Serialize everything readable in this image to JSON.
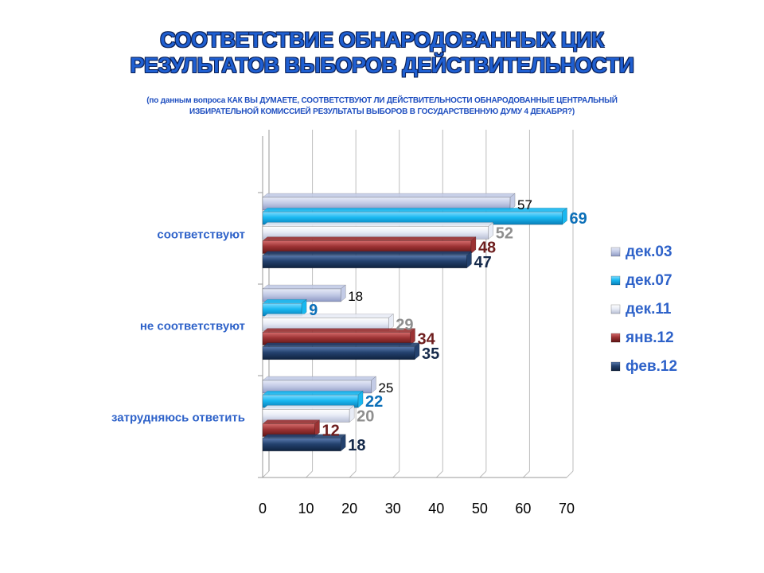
{
  "title": {
    "line1": "СООТВЕТСТВИЕ ОБНАРОДОВАННЫХ ЦИК",
    "line2": "РЕЗУЛЬТАТОВ ВЫБОРОВ ДЕЙСТВИТЕЛЬНОСТИ"
  },
  "subtitle": {
    "line1": "(по данным вопроса КАК ВЫ ДУМАЕТЕ, СООТВЕТСТВУЮТ ЛИ ДЕЙСТВИТЕЛЬНОСТИ ОБНАРОДОВАННЫЕ ЦЕНТРАЛЬНЫЙ",
    "line2": "ИЗБИРАТЕЛЬНОЙ КОМИССИЕЙ РЕЗУЛЬТАТЫ ВЫБОРОВ В ГОСУДАРСТВЕННУЮ ДУМУ 4 ДЕКАБРЯ?)"
  },
  "chart_data": {
    "type": "bar",
    "orientation": "horizontal",
    "title": "СООТВЕТСТВИЕ ОБНАРОДОВАННЫХ ЦИК РЕЗУЛЬТАТОВ ВЫБОРОВ ДЕЙСТВИТЕЛЬНОСТИ",
    "categories": [
      "соответствуют",
      "не соответствуют",
      "затрудняюсь ответить"
    ],
    "series": [
      {
        "name": "дек.03",
        "values": [
          57,
          18,
          25
        ],
        "color": "#C3CBE6",
        "label_color": "#000000"
      },
      {
        "name": "дек.07",
        "values": [
          69,
          9,
          22
        ],
        "color": "#19B8F0",
        "label_color": "#0B6FB8"
      },
      {
        "name": "дек.11",
        "values": [
          52,
          29,
          20
        ],
        "color": "#E8ECF6",
        "label_color": "#8E8E8E"
      },
      {
        "name": "янв.12",
        "values": [
          48,
          34,
          12
        ],
        "color": "#9B3233",
        "label_color": "#6E1E1E"
      },
      {
        "name": "фев.12",
        "values": [
          47,
          35,
          18
        ],
        "color": "#23416E",
        "label_color": "#15294A"
      }
    ],
    "xlim": [
      0,
      70
    ],
    "xticks": [
      0,
      10,
      20,
      30,
      40,
      50,
      60,
      70
    ],
    "grid": true,
    "legend_position": "right"
  }
}
